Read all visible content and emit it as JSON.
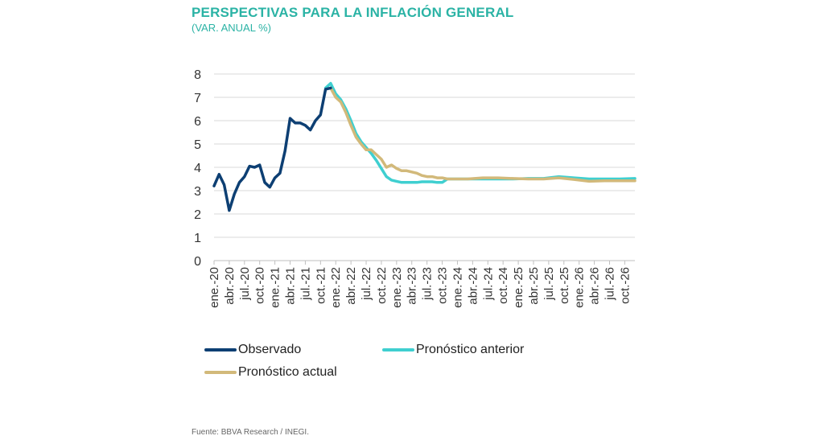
{
  "title": "PERSPECTIVAS PARA LA INFLACIÓN GENERAL",
  "subtitle": "(VAR. ANUAL %)",
  "source": "Fuente: BBVA Research / INEGI.",
  "colors": {
    "observed": "#0d3f73",
    "previous": "#3fcfd0",
    "current": "#d2b97a",
    "grid": "#d9d9d9",
    "axis": "#bfbfbf"
  },
  "chart_data": {
    "type": "line",
    "title": "PERSPECTIVAS PARA LA INFLACIÓN GENERAL",
    "subtitle": "(VAR. ANUAL %)",
    "ylim": [
      0,
      8
    ],
    "yticks": [
      "0",
      "1",
      "2",
      "3",
      "4",
      "5",
      "6",
      "7",
      "8"
    ],
    "grid": true,
    "legend_position": "bottom",
    "x_tick_labels": [
      "ene.-20",
      "abr.-20",
      "jul.-20",
      "oct.-20",
      "ene.-21",
      "abr.-21",
      "jul.-21",
      "oct.-21",
      "ene.-22",
      "abr.-22",
      "jul.-22",
      "oct.-22",
      "ene.-23",
      "abr.-23",
      "jul.-23",
      "oct.-23",
      "ene.-24",
      "abr.-24",
      "jul.-24",
      "oct.-24",
      "ene.-25",
      "abr.-25",
      "jul.-25",
      "oct.-25",
      "ene.-26",
      "abr.-26",
      "jul.-26",
      "oct.-26"
    ],
    "x_start": "2020-01",
    "x_end": "2026-12",
    "series": [
      {
        "name": "Observado",
        "color": "#0d3f73",
        "x": [
          "2020-01",
          "2020-02",
          "2020-03",
          "2020-04",
          "2020-05",
          "2020-06",
          "2020-07",
          "2020-08",
          "2020-09",
          "2020-10",
          "2020-11",
          "2020-12",
          "2021-01",
          "2021-02",
          "2021-03",
          "2021-04",
          "2021-05",
          "2021-06",
          "2021-07",
          "2021-08",
          "2021-09",
          "2021-10",
          "2021-11",
          "2021-12"
        ],
        "y": [
          3.2,
          3.7,
          3.25,
          2.15,
          2.85,
          3.35,
          3.6,
          4.05,
          4.0,
          4.1,
          3.35,
          3.15,
          3.55,
          3.75,
          4.7,
          6.1,
          5.9,
          5.9,
          5.8,
          5.6,
          6.0,
          6.25,
          7.35,
          7.4
        ]
      },
      {
        "name": "Pronóstico anterior",
        "color": "#3fcfd0",
        "x": [
          "2021-11",
          "2021-12",
          "2022-01",
          "2022-02",
          "2022-03",
          "2022-04",
          "2022-05",
          "2022-06",
          "2022-07",
          "2022-08",
          "2022-09",
          "2022-10",
          "2022-11",
          "2022-12",
          "2023-01",
          "2023-02",
          "2023-03",
          "2023-04",
          "2023-05",
          "2023-06",
          "2023-07",
          "2023-08",
          "2023-09",
          "2023-10",
          "2023-11",
          "2023-12",
          "2024-03",
          "2024-06",
          "2024-09",
          "2024-12",
          "2025-03",
          "2025-06",
          "2025-09",
          "2025-12",
          "2026-03",
          "2026-06",
          "2026-09",
          "2026-12"
        ],
        "y": [
          7.4,
          7.6,
          7.15,
          6.9,
          6.5,
          6.0,
          5.45,
          5.1,
          4.85,
          4.6,
          4.3,
          3.95,
          3.6,
          3.45,
          3.4,
          3.35,
          3.35,
          3.35,
          3.35,
          3.38,
          3.38,
          3.38,
          3.35,
          3.35,
          3.5,
          3.5,
          3.5,
          3.5,
          3.5,
          3.5,
          3.52,
          3.52,
          3.6,
          3.55,
          3.5,
          3.5,
          3.5,
          3.52
        ]
      },
      {
        "name": "Pronóstico actual",
        "color": "#d2b97a",
        "x": [
          "2021-12",
          "2022-01",
          "2022-02",
          "2022-03",
          "2022-04",
          "2022-05",
          "2022-06",
          "2022-07",
          "2022-08",
          "2022-09",
          "2022-10",
          "2022-11",
          "2022-12",
          "2023-01",
          "2023-02",
          "2023-03",
          "2023-04",
          "2023-05",
          "2023-06",
          "2023-07",
          "2023-08",
          "2023-09",
          "2023-10",
          "2023-11",
          "2023-12",
          "2024-03",
          "2024-06",
          "2024-09",
          "2024-12",
          "2025-03",
          "2025-06",
          "2025-09",
          "2025-12",
          "2026-03",
          "2026-06",
          "2026-09",
          "2026-12"
        ],
        "y": [
          7.4,
          7.0,
          6.8,
          6.35,
          5.8,
          5.3,
          5.0,
          4.75,
          4.75,
          4.55,
          4.35,
          4.0,
          4.1,
          3.95,
          3.85,
          3.85,
          3.8,
          3.75,
          3.65,
          3.6,
          3.6,
          3.55,
          3.55,
          3.5,
          3.5,
          3.5,
          3.55,
          3.55,
          3.52,
          3.5,
          3.5,
          3.55,
          3.48,
          3.4,
          3.42,
          3.42,
          3.42
        ]
      }
    ]
  }
}
